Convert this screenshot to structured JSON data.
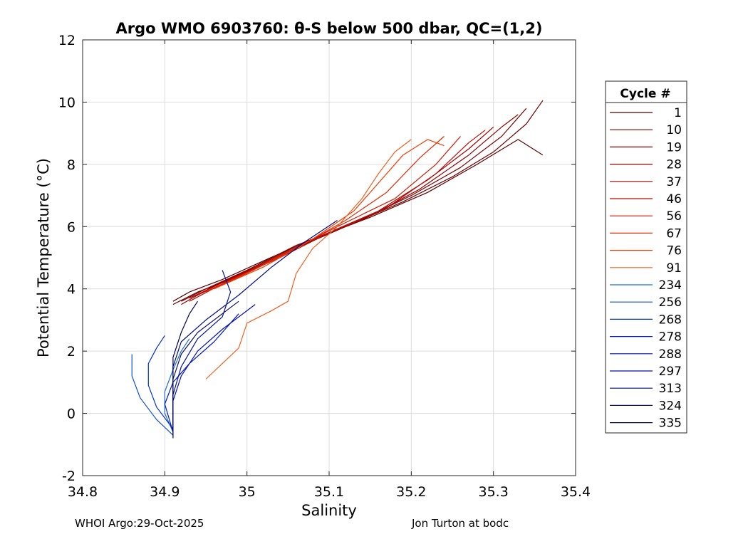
{
  "chart_data": {
    "type": "line",
    "title": "Argo WMO 6903760: θ-S below 500 dbar,  QC=(1,2)",
    "xlabel": "Salinity",
    "ylabel": "Potential Temperature (°C)",
    "xlim": [
      34.8,
      35.4
    ],
    "ylim": [
      -2,
      12
    ],
    "xticks": [
      "34.8",
      "34.9",
      "35",
      "35.1",
      "35.2",
      "35.3",
      "35.4"
    ],
    "yticks": [
      "-2",
      "0",
      "2",
      "4",
      "6",
      "8",
      "10",
      "12"
    ],
    "grid": true,
    "legend": {
      "title": "Cycle #",
      "placement": "outside-right",
      "entries": [
        {
          "label": "1",
          "color": "#5c0000"
        },
        {
          "label": "10",
          "color": "#6e0000"
        },
        {
          "label": "19",
          "color": "#800000"
        },
        {
          "label": "28",
          "color": "#940000"
        },
        {
          "label": "37",
          "color": "#a80000"
        },
        {
          "label": "46",
          "color": "#bc0a00"
        },
        {
          "label": "56",
          "color": "#d01a00"
        },
        {
          "label": "67",
          "color": "#e02a00"
        },
        {
          "label": "76",
          "color": "#ee3c00"
        },
        {
          "label": "91",
          "color": "#f06020"
        },
        {
          "label": "234",
          "color": "#1f6ed4"
        },
        {
          "label": "256",
          "color": "#0a4fd6"
        },
        {
          "label": "268",
          "color": "#0030d0"
        },
        {
          "label": "278",
          "color": "#0018c8"
        },
        {
          "label": "288",
          "color": "#0010b8"
        },
        {
          "label": "297",
          "color": "#0010a0"
        },
        {
          "label": "313",
          "color": "#000c80"
        },
        {
          "label": "324",
          "color": "#101060"
        },
        {
          "label": "335",
          "color": "#000050"
        }
      ]
    },
    "series": [
      {
        "name": "1",
        "color": "#5c0000",
        "points": [
          [
            34.91,
            3.6
          ],
          [
            34.93,
            3.9
          ],
          [
            34.97,
            4.3
          ],
          [
            35.02,
            4.9
          ],
          [
            35.08,
            5.6
          ],
          [
            35.15,
            6.3
          ],
          [
            35.22,
            7.1
          ],
          [
            35.28,
            8.0
          ],
          [
            35.33,
            8.8
          ],
          [
            35.36,
            8.3
          ]
        ]
      },
      {
        "name": "10",
        "color": "#6e0000",
        "points": [
          [
            34.91,
            3.5
          ],
          [
            34.94,
            3.9
          ],
          [
            34.99,
            4.4
          ],
          [
            35.05,
            5.2
          ],
          [
            35.12,
            6.0
          ],
          [
            35.19,
            6.8
          ],
          [
            35.25,
            7.6
          ],
          [
            35.3,
            8.4
          ],
          [
            35.34,
            9.3
          ],
          [
            35.36,
            10.05
          ]
        ]
      },
      {
        "name": "19",
        "color": "#800000",
        "points": [
          [
            34.92,
            3.6
          ],
          [
            34.95,
            4.0
          ],
          [
            35.0,
            4.6
          ],
          [
            35.06,
            5.4
          ],
          [
            35.13,
            6.1
          ],
          [
            35.2,
            7.0
          ],
          [
            35.26,
            7.9
          ],
          [
            35.31,
            8.9
          ],
          [
            35.34,
            9.8
          ]
        ]
      },
      {
        "name": "28",
        "color": "#940000",
        "points": [
          [
            34.92,
            3.5
          ],
          [
            34.96,
            4.1
          ],
          [
            35.01,
            4.7
          ],
          [
            35.07,
            5.5
          ],
          [
            35.14,
            6.2
          ],
          [
            35.21,
            7.2
          ],
          [
            35.27,
            8.3
          ],
          [
            35.31,
            9.2
          ],
          [
            35.33,
            9.6
          ]
        ]
      },
      {
        "name": "37",
        "color": "#a80000",
        "points": [
          [
            34.93,
            3.7
          ],
          [
            34.97,
            4.2
          ],
          [
            35.02,
            4.8
          ],
          [
            35.09,
            5.7
          ],
          [
            35.16,
            6.5
          ],
          [
            35.22,
            7.5
          ],
          [
            35.27,
            8.5
          ],
          [
            35.3,
            9.2
          ]
        ]
      },
      {
        "name": "46",
        "color": "#bc0a00",
        "points": [
          [
            34.93,
            3.6
          ],
          [
            34.98,
            4.3
          ],
          [
            35.04,
            5.0
          ],
          [
            35.1,
            5.8
          ],
          [
            35.17,
            6.6
          ],
          [
            35.23,
            7.7
          ],
          [
            35.27,
            8.7
          ],
          [
            35.29,
            9.1
          ]
        ]
      },
      {
        "name": "56",
        "color": "#d01a00",
        "points": [
          [
            34.94,
            3.8
          ],
          [
            34.99,
            4.4
          ],
          [
            35.05,
            5.2
          ],
          [
            35.11,
            6.0
          ],
          [
            35.18,
            6.9
          ],
          [
            35.23,
            8.0
          ],
          [
            35.26,
            8.9
          ]
        ]
      },
      {
        "name": "67",
        "color": "#e02a00",
        "points": [
          [
            34.95,
            3.9
          ],
          [
            35.0,
            4.5
          ],
          [
            35.06,
            5.3
          ],
          [
            35.12,
            6.2
          ],
          [
            35.17,
            7.1
          ],
          [
            35.21,
            8.2
          ],
          [
            35.24,
            8.9
          ]
        ]
      },
      {
        "name": "76",
        "color": "#ee3c00",
        "points": [
          [
            34.96,
            4.0
          ],
          [
            35.02,
            4.7
          ],
          [
            35.08,
            5.6
          ],
          [
            35.13,
            6.5
          ],
          [
            35.16,
            7.4
          ],
          [
            35.19,
            8.3
          ],
          [
            35.22,
            8.8
          ],
          [
            35.24,
            8.6
          ]
        ]
      },
      {
        "name": "91",
        "color": "#f06020",
        "points": [
          [
            34.95,
            1.1
          ],
          [
            34.99,
            2.1
          ],
          [
            35.0,
            2.9
          ],
          [
            35.03,
            3.3
          ],
          [
            35.05,
            3.6
          ],
          [
            35.06,
            4.5
          ],
          [
            35.08,
            5.3
          ],
          [
            35.11,
            6.0
          ],
          [
            35.14,
            6.9
          ],
          [
            35.16,
            7.7
          ],
          [
            35.18,
            8.4
          ],
          [
            35.2,
            8.8
          ]
        ]
      },
      {
        "name": "234",
        "color": "#1f6ed4",
        "points": [
          [
            34.91,
            -0.6
          ],
          [
            34.9,
            0.0
          ],
          [
            34.9,
            0.7
          ],
          [
            34.91,
            1.4
          ],
          [
            34.92,
            2.0
          ],
          [
            34.93,
            2.4
          ]
        ]
      },
      {
        "name": "256",
        "color": "#0a4fd6",
        "points": [
          [
            34.91,
            -0.7
          ],
          [
            34.89,
            -0.2
          ],
          [
            34.87,
            0.5
          ],
          [
            34.86,
            1.2
          ],
          [
            34.86,
            1.9
          ]
        ]
      },
      {
        "name": "268",
        "color": "#0030d0",
        "points": [
          [
            34.91,
            -0.5
          ],
          [
            34.89,
            0.2
          ],
          [
            34.88,
            0.9
          ],
          [
            34.88,
            1.6
          ],
          [
            34.89,
            2.1
          ],
          [
            34.9,
            2.5
          ]
        ]
      },
      {
        "name": "278",
        "color": "#0018c8",
        "points": [
          [
            34.91,
            -0.6
          ],
          [
            34.9,
            0.3
          ],
          [
            34.91,
            1.0
          ],
          [
            34.93,
            1.6
          ],
          [
            34.96,
            2.3
          ],
          [
            34.99,
            3.2
          ]
        ]
      },
      {
        "name": "288",
        "color": "#0010b8",
        "points": [
          [
            34.91,
            -0.4
          ],
          [
            34.91,
            0.4
          ],
          [
            34.92,
            1.2
          ],
          [
            34.94,
            2.0
          ],
          [
            34.97,
            2.7
          ],
          [
            35.01,
            3.5
          ]
        ]
      },
      {
        "name": "297",
        "color": "#0010a0",
        "points": [
          [
            34.91,
            -0.3
          ],
          [
            34.91,
            0.6
          ],
          [
            34.92,
            1.5
          ],
          [
            34.94,
            2.4
          ],
          [
            34.97,
            3.1
          ],
          [
            34.98,
            3.9
          ],
          [
            34.97,
            4.6
          ]
        ]
      },
      {
        "name": "313",
        "color": "#000c80",
        "points": [
          [
            34.91,
            -0.5
          ],
          [
            34.91,
            0.5
          ],
          [
            34.91,
            1.5
          ],
          [
            34.92,
            2.3
          ],
          [
            34.95,
            3.0
          ],
          [
            34.99,
            3.8
          ],
          [
            35.03,
            4.7
          ],
          [
            35.07,
            5.5
          ],
          [
            35.11,
            6.2
          ]
        ]
      },
      {
        "name": "324",
        "color": "#101060",
        "points": [
          [
            34.91,
            -0.7
          ],
          [
            34.91,
            0.2
          ],
          [
            34.91,
            1.1
          ],
          [
            34.92,
            1.9
          ],
          [
            34.94,
            2.6
          ],
          [
            34.99,
            3.6
          ]
        ]
      },
      {
        "name": "335",
        "color": "#000050",
        "points": [
          [
            34.91,
            -0.8
          ],
          [
            34.91,
            0.0
          ],
          [
            34.91,
            0.9
          ],
          [
            34.91,
            1.8
          ],
          [
            34.92,
            2.6
          ],
          [
            34.93,
            3.2
          ],
          [
            34.94,
            3.6
          ]
        ]
      }
    ]
  },
  "footer": {
    "left": "WHOI Argo:29-Oct-2025",
    "right": "Jon Turton at bodc"
  }
}
